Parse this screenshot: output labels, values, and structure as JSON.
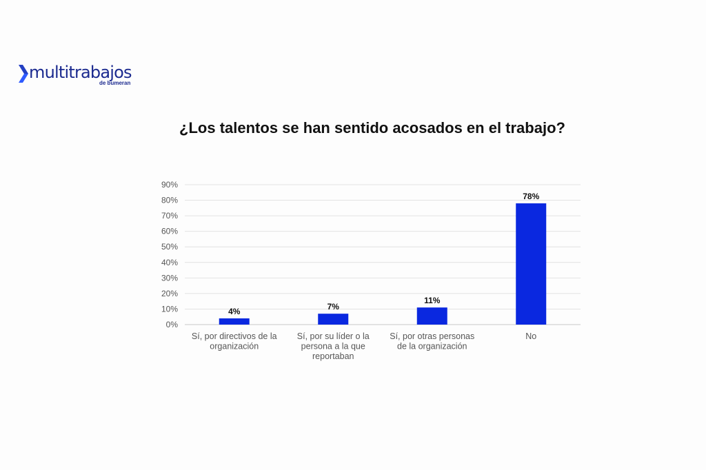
{
  "brand": {
    "name": "multitrabajos",
    "tagline": "de bumeran",
    "color": "#1b2a8f",
    "accent": "#2f5bff",
    "icon": "chevron-logo-icon"
  },
  "chart_data": {
    "type": "bar",
    "title": "¿Los talentos se han sentido acosados en el trabajo?",
    "categories": [
      [
        "Sí, por directivos de la",
        "organización"
      ],
      [
        "Sí, por su líder o la",
        "persona a la que",
        "reportaban"
      ],
      [
        "Sí, por otras personas",
        "de la organización"
      ],
      [
        "No"
      ]
    ],
    "values": [
      4,
      7,
      11,
      78
    ],
    "data_labels": [
      "4%",
      "7%",
      "11%",
      "78%"
    ],
    "yticks": [
      "0%",
      "10%",
      "20%",
      "30%",
      "40%",
      "50%",
      "60%",
      "70%",
      "80%",
      "90%"
    ],
    "ylim": [
      0,
      90
    ],
    "grid": true,
    "bar_color": "#0a28e0",
    "xlabel": "",
    "ylabel": ""
  }
}
